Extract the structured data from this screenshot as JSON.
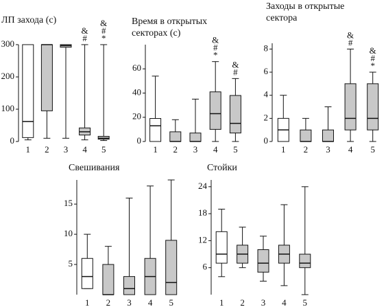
{
  "chart_data": [
    {
      "type": "box",
      "title": [
        "ЛП захода (с)"
      ],
      "categories": [
        "1",
        "2",
        "3",
        "4",
        "5"
      ],
      "ylim": [
        0,
        300
      ],
      "yticks": [
        0,
        100,
        200,
        300
      ],
      "boxes": [
        {
          "min": 5,
          "q1": 12,
          "median": 62,
          "q3": 300,
          "max": 300,
          "color": "#ffffff"
        },
        {
          "min": 10,
          "q1": 95,
          "median": 300,
          "q3": 300,
          "max": 300,
          "color": "#c8c8c8"
        },
        {
          "min": 10,
          "q1": 292,
          "median": 297,
          "q3": 300,
          "max": 300,
          "color": "#c8c8c8"
        },
        {
          "min": 5,
          "q1": 20,
          "median": 30,
          "q3": 42,
          "max": 300,
          "color": "#c8c8c8"
        },
        {
          "min": 3,
          "q1": 7,
          "median": 10,
          "q3": 16,
          "max": 300,
          "color": "#c8c8c8"
        }
      ],
      "markers": [
        [],
        [],
        [],
        [
          "&",
          "#"
        ],
        [
          "&",
          "#",
          "*"
        ]
      ]
    },
    {
      "type": "box",
      "title": [
        "Время в открытых",
        "секторах (с)"
      ],
      "categories": [
        "1",
        "2",
        "3",
        "4",
        "5"
      ],
      "ylim": [
        0,
        80
      ],
      "yticks": [
        0,
        20,
        40,
        60
      ],
      "boxes": [
        {
          "min": 0,
          "q1": 0,
          "median": 13,
          "q3": 19,
          "max": 54,
          "color": "#ffffff"
        },
        {
          "min": 0,
          "q1": 0,
          "median": 0,
          "q3": 8,
          "max": 18,
          "color": "#c8c8c8"
        },
        {
          "min": 0,
          "q1": 0,
          "median": 0,
          "q3": 7,
          "max": 35,
          "color": "#c8c8c8"
        },
        {
          "min": 0,
          "q1": 10,
          "median": 23,
          "q3": 41,
          "max": 66,
          "color": "#c8c8c8"
        },
        {
          "min": 0,
          "q1": 7,
          "median": 15,
          "q3": 38,
          "max": 52,
          "color": "#c8c8c8"
        }
      ],
      "markers": [
        [],
        [],
        [],
        [
          "&",
          "#",
          "*"
        ],
        [
          "&",
          "#"
        ]
      ]
    },
    {
      "type": "box",
      "title": [
        "Заходы в открытые",
        "сектора"
      ],
      "categories": [
        "1",
        "2",
        "3",
        "4",
        "5"
      ],
      "ylim": [
        0,
        8.5
      ],
      "yticks": [
        0,
        2,
        4,
        6,
        8
      ],
      "boxes": [
        {
          "min": 0,
          "q1": 0,
          "median": 1,
          "q3": 2,
          "max": 4,
          "color": "#ffffff"
        },
        {
          "min": 0,
          "q1": 0,
          "median": 0,
          "q3": 1,
          "max": 2,
          "color": "#c8c8c8"
        },
        {
          "min": 0,
          "q1": 0,
          "median": 0,
          "q3": 1,
          "max": 3,
          "color": "#c8c8c8"
        },
        {
          "min": 0,
          "q1": 1,
          "median": 2,
          "q3": 5,
          "max": 8,
          "color": "#c8c8c8"
        },
        {
          "min": 0,
          "q1": 1,
          "median": 2,
          "q3": 5,
          "max": 6,
          "color": "#c8c8c8"
        }
      ],
      "markers": [
        [],
        [],
        [],
        [
          "&",
          "#"
        ],
        [
          "&",
          "#",
          "*"
        ]
      ]
    },
    {
      "type": "box",
      "title": [
        "Свешивания"
      ],
      "categories": [
        "1",
        "2",
        "3",
        "4",
        "5"
      ],
      "ylim": [
        0,
        19
      ],
      "yticks": [
        5,
        10,
        15
      ],
      "boxes": [
        {
          "min": 1,
          "q1": 1,
          "median": 3,
          "q3": 6,
          "max": 10,
          "color": "#ffffff"
        },
        {
          "min": 0,
          "q1": 0,
          "median": 0,
          "q3": 5,
          "max": 8,
          "color": "#c8c8c8"
        },
        {
          "min": 0,
          "q1": 0,
          "median": 1,
          "q3": 3,
          "max": 16,
          "color": "#c8c8c8"
        },
        {
          "min": 0,
          "q1": 0,
          "median": 3,
          "q3": 6,
          "max": 18,
          "color": "#c8c8c8"
        },
        {
          "min": 0,
          "q1": 0,
          "median": 2,
          "q3": 9,
          "max": 19,
          "color": "#c8c8c8"
        }
      ],
      "markers": [
        [],
        [],
        [],
        [],
        []
      ]
    },
    {
      "type": "box",
      "title": [
        "Стойки"
      ],
      "categories": [
        "1",
        "2",
        "3",
        "4",
        "5"
      ],
      "ylim": [
        0,
        25.5
      ],
      "yticks": [
        6,
        12,
        18,
        24
      ],
      "boxes": [
        {
          "min": 4,
          "q1": 7,
          "median": 9,
          "q3": 14,
          "max": 19,
          "color": "#ffffff"
        },
        {
          "min": 6,
          "q1": 7,
          "median": 9,
          "q3": 11,
          "max": 15,
          "color": "#c8c8c8"
        },
        {
          "min": 3,
          "q1": 5,
          "median": 7,
          "q3": 10,
          "max": 13,
          "color": "#c8c8c8"
        },
        {
          "min": 2,
          "q1": 7,
          "median": 9,
          "q3": 11,
          "max": 20,
          "color": "#c8c8c8"
        },
        {
          "min": 0,
          "q1": 6,
          "median": 7,
          "q3": 9,
          "max": 24,
          "color": "#c8c8c8"
        }
      ],
      "markers": [
        [],
        [],
        [],
        [],
        []
      ]
    }
  ]
}
